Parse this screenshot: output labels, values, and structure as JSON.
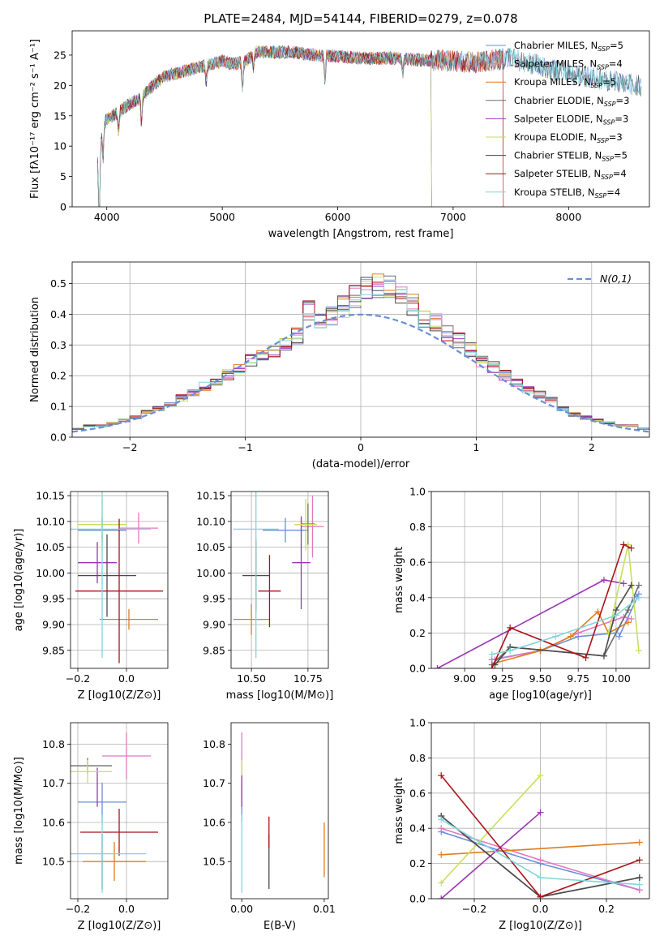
{
  "colors": {
    "Chabrier MILES": "#6a8fd8",
    "Salpeter MILES": "#e377c2",
    "Kroupa MILES": "#e07b20",
    "Chabrier ELODIE": "#6e6e6e",
    "Salpeter ELODIE": "#9b35b5",
    "Kroupa ELODIE": "#c6e05a",
    "Chabrier STELIB": "#4a4a4a",
    "Salpeter STELIB": "#a8151a",
    "Kroupa STELIB": "#7fd6db",
    "normal": "#6a8fd8"
  },
  "chart_data": [
    {
      "id": "spectrum",
      "type": "line",
      "title": "PLATE=2484, MJD=54144, FIBERID=0279, z=0.078",
      "xlabel": "wavelength [Angstrom, rest frame]",
      "ylabel": "Flux [fλ10⁻¹⁷ erg cm⁻² s⁻¹ A⁻¹]",
      "xlim": [
        3700,
        8700
      ],
      "ylim": [
        0,
        29
      ],
      "xticks": [
        4000,
        5000,
        6000,
        7000,
        8000
      ],
      "yticks": [
        0,
        5,
        10,
        15,
        20,
        25
      ],
      "grid": false,
      "legend": "upper-right",
      "series": [
        {
          "name": "Chabrier MILES, N_SSP=5",
          "end": 8630
        },
        {
          "name": "Salpeter MILES, N_SSP=4",
          "end": 7430
        },
        {
          "name": "Kroupa MILES, N_SSP=5",
          "end": 7430
        },
        {
          "name": "Chabrier ELODIE, N_SSP=3",
          "end": 6810
        },
        {
          "name": "Salpeter ELODIE, N_SSP=3",
          "end": 6810
        },
        {
          "name": "Kroupa ELODIE, N_SSP=3",
          "end": 6810
        },
        {
          "name": "Chabrier STELIB, N_SSP=5",
          "end": 8630
        },
        {
          "name": "Salpeter STELIB, N_SSP=4",
          "end": 7430
        },
        {
          "name": "Kroupa STELIB, N_SSP=4",
          "end": 8630
        }
      ],
      "continuum": {
        "x": [
          3920,
          3935,
          3950,
          3970,
          4000,
          4050,
          4100,
          4200,
          4300,
          4400,
          4500,
          4700,
          4900,
          5000,
          5100,
          5200,
          5300,
          5400,
          5600,
          5800,
          6000,
          6200,
          6500,
          6700,
          7000,
          7200,
          7500,
          7700,
          8000,
          8300,
          8600
        ],
        "y": [
          8,
          3,
          11,
          13.5,
          14.5,
          15,
          15.5,
          17,
          18,
          20,
          21.5,
          22.5,
          23.5,
          24,
          23.5,
          24,
          25.5,
          25.5,
          25.5,
          25,
          24.8,
          24.5,
          24.5,
          24.2,
          24,
          23.8,
          24.5,
          23.5,
          22,
          21,
          20
        ]
      },
      "absorption": [
        {
          "x": 3934,
          "depth": 6
        },
        {
          "x": 3968,
          "depth": 5
        },
        {
          "x": 4102,
          "depth": 3
        },
        {
          "x": 4300,
          "depth": 4
        },
        {
          "x": 4861,
          "depth": 3
        },
        {
          "x": 5175,
          "depth": 4.5
        },
        {
          "x": 5270,
          "depth": 2
        },
        {
          "x": 5890,
          "depth": 4
        },
        {
          "x": 6563,
          "depth": 2.5
        }
      ]
    },
    {
      "id": "residuals",
      "type": "bar",
      "xlabel": "(data-model)/error",
      "ylabel": "Normed distribution",
      "xlim": [
        -2.5,
        2.5
      ],
      "ylim": [
        0,
        0.57
      ],
      "xticks": [
        -2,
        -1,
        0,
        1,
        2
      ],
      "yticks": [
        0.0,
        0.1,
        0.2,
        0.3,
        0.4,
        0.5
      ],
      "grid": true,
      "legend": "upper-right",
      "bin_width": 0.1,
      "normal_label": "N(0,1)",
      "bin_max": [
        0.03,
        0.04,
        0.04,
        0.05,
        0.06,
        0.07,
        0.09,
        0.1,
        0.12,
        0.14,
        0.16,
        0.18,
        0.19,
        0.22,
        0.24,
        0.27,
        0.29,
        0.31,
        0.33,
        0.36,
        0.45,
        0.41,
        0.43,
        0.46,
        0.5,
        0.52,
        0.54,
        0.53,
        0.5,
        0.47,
        0.42,
        0.41,
        0.37,
        0.34,
        0.31,
        0.27,
        0.25,
        0.22,
        0.19,
        0.17,
        0.15,
        0.13,
        0.1,
        0.08,
        0.07,
        0.06,
        0.05,
        0.04,
        0.04,
        0.03
      ],
      "bin_spread": 0.1
    },
    {
      "id": "age-Z",
      "type": "scatter",
      "xlabel": "Z [log10(Z/Z⊙)]",
      "ylabel": "age  [log10(age/yr)]",
      "xlim": [
        -0.23,
        0.17
      ],
      "ylim": [
        9.815,
        10.158
      ],
      "xticks": [
        -0.2,
        0.0
      ],
      "yticks": [
        9.85,
        9.9,
        9.95,
        10.0,
        10.05,
        10.1,
        10.15
      ],
      "grid": true,
      "points": [
        {
          "model": "Chabrier MILES",
          "x": -0.1,
          "xerr": 0.1,
          "y": 10.083,
          "yerr": 0.024
        },
        {
          "model": "Salpeter MILES",
          "x": 0.05,
          "xerr": 0.08,
          "y": 10.087,
          "yerr": 0.03
        },
        {
          "model": "Kroupa MILES",
          "x": 0.01,
          "xerr": 0.12,
          "y": 9.91,
          "yerr": 0.02
        },
        {
          "model": "Chabrier ELODIE",
          "x": -0.2,
          "xerr": 0.0,
          "y": 10.09,
          "yerr": 0.0
        },
        {
          "model": "Salpeter ELODIE",
          "x": -0.12,
          "xerr": 0.08,
          "y": 10.02,
          "yerr": 0.04
        },
        {
          "model": "Kroupa ELODIE",
          "x": -0.1,
          "xerr": 0.1,
          "y": 10.094,
          "yerr": 0.05
        },
        {
          "model": "Chabrier STELIB",
          "x": -0.08,
          "xerr": 0.12,
          "y": 9.995,
          "yerr": 0.08
        },
        {
          "model": "Salpeter STELIB",
          "x": -0.03,
          "xerr": 0.18,
          "y": 9.965,
          "yerr": 0.14
        },
        {
          "model": "Kroupa STELIB",
          "x": -0.1,
          "xerr": 0.2,
          "y": 10.085,
          "yerr": 0.25
        }
      ]
    },
    {
      "id": "age-mass",
      "type": "scatter",
      "xlabel": "mass [log10(M/M⊙)]",
      "ylabel": "",
      "xlim": [
        10.41,
        10.84
      ],
      "ylim": [
        9.815,
        10.158
      ],
      "xticks": [
        10.5,
        10.75
      ],
      "yticks": [
        9.85,
        9.9,
        9.95,
        10.0,
        10.05,
        10.1,
        10.15
      ],
      "grid": true,
      "points": [
        {
          "model": "Chabrier MILES",
          "x": 10.65,
          "xerr": 0.1,
          "y": 10.083,
          "yerr": 0.024
        },
        {
          "model": "Salpeter MILES",
          "x": 10.77,
          "xerr": 0.05,
          "y": 10.09,
          "yerr": 0.06
        },
        {
          "model": "Kroupa MILES",
          "x": 10.5,
          "xerr": 0.08,
          "y": 9.91,
          "yerr": 0.03
        },
        {
          "model": "Chabrier ELODIE",
          "x": 10.75,
          "xerr": 0.03,
          "y": 10.095,
          "yerr": 0.04
        },
        {
          "model": "Salpeter ELODIE",
          "x": 10.72,
          "xerr": 0.04,
          "y": 10.02,
          "yerr": 0.09
        },
        {
          "model": "Kroupa ELODIE",
          "x": 10.74,
          "xerr": 0.05,
          "y": 10.094,
          "yerr": 0.05
        },
        {
          "model": "Chabrier STELIB",
          "x": 10.52,
          "xerr": 0.06,
          "y": 9.995,
          "yerr": 0.07
        },
        {
          "model": "Salpeter STELIB",
          "x": 10.58,
          "xerr": 0.05,
          "y": 9.965,
          "yerr": 0.07
        },
        {
          "model": "Kroupa STELIB",
          "x": 10.52,
          "xerr": 0.1,
          "y": 10.085,
          "yerr": 0.25
        }
      ]
    },
    {
      "id": "mw-age",
      "type": "line",
      "xlabel": "age  [log10(age/yr)]",
      "ylabel": "mass weight",
      "xlim": [
        8.78,
        10.22
      ],
      "ylim": [
        0,
        1.0
      ],
      "xticks": [
        9.0,
        9.25,
        9.5,
        9.75,
        10.0
      ],
      "yticks": [
        0.0,
        0.2,
        0.4,
        0.6,
        0.8,
        1.0
      ],
      "grid": true,
      "series": [
        {
          "model": "Chabrier MILES",
          "x": [
            9.18,
            9.5,
            9.75,
            10.0,
            10.12,
            10.15,
            10.02
          ],
          "y": [
            0.05,
            0.1,
            0.18,
            0.2,
            0.4,
            0.42,
            0.18
          ]
        },
        {
          "model": "Salpeter MILES",
          "x": [
            9.2,
            9.5,
            9.75,
            9.98,
            10.05,
            10.1
          ],
          "y": [
            0.05,
            0.1,
            0.2,
            0.27,
            0.29,
            0.28
          ]
        },
        {
          "model": "Kroupa MILES",
          "x": [
            9.2,
            9.5,
            9.7,
            9.88,
            9.95,
            10.08
          ],
          "y": [
            0.03,
            0.1,
            0.18,
            0.32,
            0.2,
            0.26
          ]
        },
        {
          "model": "Chabrier ELODIE",
          "x": [
            9.18,
            9.3,
            9.92,
            10.08,
            10.15
          ],
          "y": [
            0.02,
            0.12,
            0.07,
            0.33,
            0.47
          ]
        },
        {
          "model": "Salpeter ELODIE",
          "x": [
            8.82,
            9.92,
            10.05
          ],
          "y": [
            0.0,
            0.5,
            0.48
          ]
        },
        {
          "model": "Kroupa ELODIE",
          "x": [
            9.95,
            10.08,
            10.15
          ],
          "y": [
            0.2,
            0.7,
            0.1
          ]
        },
        {
          "model": "Chabrier STELIB",
          "x": [
            9.2,
            9.3,
            9.92,
            10.0,
            10.1
          ],
          "y": [
            0.02,
            0.12,
            0.07,
            0.33,
            0.47
          ]
        },
        {
          "model": "Salpeter STELIB",
          "x": [
            9.18,
            9.3,
            9.8,
            10.05,
            10.1
          ],
          "y": [
            0.0,
            0.23,
            0.06,
            0.7,
            0.68
          ]
        },
        {
          "model": "Kroupa STELIB",
          "x": [
            9.18,
            9.3,
            9.6,
            10.0,
            10.15
          ],
          "y": [
            0.08,
            0.1,
            0.18,
            0.3,
            0.4
          ]
        }
      ]
    },
    {
      "id": "mass-Z",
      "type": "scatter",
      "xlabel": "Z [log10(Z/Z⊙)]",
      "ylabel": "mass [log10(M/M⊙)]",
      "xlim": [
        -0.23,
        0.17
      ],
      "ylim": [
        10.405,
        10.855
      ],
      "xticks": [
        -0.2,
        0.0
      ],
      "yticks": [
        10.5,
        10.6,
        10.7,
        10.8
      ],
      "grid": true,
      "points": [
        {
          "model": "Chabrier MILES",
          "x": -0.1,
          "xerr": 0.1,
          "y": 10.652,
          "yerr": 0.05
        },
        {
          "model": "Salpeter MILES",
          "x": 0.0,
          "xerr": 0.1,
          "y": 10.77,
          "yerr": 0.06
        },
        {
          "model": "Kroupa MILES",
          "x": -0.05,
          "xerr": 0.13,
          "y": 10.5,
          "yerr": 0.05
        },
        {
          "model": "Chabrier ELODIE",
          "x": -0.16,
          "xerr": 0.1,
          "y": 10.745,
          "yerr": 0.02
        },
        {
          "model": "Salpeter ELODIE",
          "x": -0.12,
          "xerr": 0.0,
          "y": 10.69,
          "yerr": 0.05
        },
        {
          "model": "Kroupa ELODIE",
          "x": -0.16,
          "xerr": 0.1,
          "y": 10.73,
          "yerr": 0.03
        },
        {
          "model": "Chabrier STELIB",
          "x": -0.1,
          "xerr": 0.0,
          "y": 10.5,
          "yerr": 0.07
        },
        {
          "model": "Salpeter STELIB",
          "x": -0.03,
          "xerr": 0.16,
          "y": 10.575,
          "yerr": 0.06
        },
        {
          "model": "Kroupa STELIB",
          "x": -0.1,
          "xerr": 0.18,
          "y": 10.52,
          "yerr": 0.1
        }
      ]
    },
    {
      "id": "mass-ebv",
      "type": "scatter",
      "xlabel": "E(B-V)",
      "ylabel": "",
      "xlim": [
        -0.0013,
        0.0105
      ],
      "ylim": [
        10.405,
        10.855
      ],
      "xticks": [
        0.0,
        0.01
      ],
      "yticks": [
        10.5,
        10.6,
        10.7,
        10.8
      ],
      "grid": false,
      "points": [
        {
          "model": "Chabrier MILES",
          "x": 0.0,
          "xerr": 0.0,
          "y": 10.652,
          "yerr": 0.05
        },
        {
          "model": "Salpeter MILES",
          "x": 0.0,
          "xerr": 0.0,
          "y": 10.77,
          "yerr": 0.06
        },
        {
          "model": "Kroupa MILES",
          "x": 0.01,
          "xerr": 0.0,
          "y": 10.53,
          "yerr": 0.07
        },
        {
          "model": "Kroupa ELODIE",
          "x": 0.0,
          "xerr": 0.0,
          "y": 10.73,
          "yerr": 0.03
        },
        {
          "model": "Salpeter ELODIE",
          "x": 0.0,
          "xerr": 0.0,
          "y": 10.68,
          "yerr": 0.04
        },
        {
          "model": "Chabrier STELIB",
          "x": 0.0033,
          "xerr": 0.0,
          "y": 10.5,
          "yerr": 0.07
        },
        {
          "model": "Salpeter STELIB",
          "x": 0.0033,
          "xerr": 0.0,
          "y": 10.575,
          "yerr": 0.04
        },
        {
          "model": "Kroupa STELIB",
          "x": 0.0,
          "xerr": 0.0,
          "y": 10.52,
          "yerr": 0.1
        }
      ]
    },
    {
      "id": "mw-Z",
      "type": "line",
      "xlabel": "Z [log10(Z/Z⊙)]",
      "ylabel": "mass weight",
      "xlim": [
        -0.33,
        0.33
      ],
      "ylim": [
        0,
        1.0
      ],
      "xticks": [
        -0.2,
        0.0,
        0.2
      ],
      "yticks": [
        0.0,
        0.2,
        0.4,
        0.6,
        0.8,
        1.0
      ],
      "grid": true,
      "series": [
        {
          "model": "Chabrier MILES",
          "x": [
            -0.3,
            0.0,
            0.3
          ],
          "y": [
            0.38,
            0.2,
            0.05
          ]
        },
        {
          "model": "Salpeter MILES",
          "x": [
            -0.3,
            0.0,
            0.3
          ],
          "y": [
            0.4,
            0.22,
            0.05
          ]
        },
        {
          "model": "Kroupa MILES",
          "x": [
            -0.3,
            0.3
          ],
          "y": [
            0.25,
            0.32
          ]
        },
        {
          "model": "Chabrier ELODIE",
          "x": [
            -0.3,
            0.0,
            0.3
          ],
          "y": [
            0.47,
            0.01,
            0.12
          ]
        },
        {
          "model": "Salpeter ELODIE",
          "x": [
            -0.3,
            0.0
          ],
          "y": [
            0.0,
            0.49
          ]
        },
        {
          "model": "Kroupa ELODIE",
          "x": [
            -0.3,
            0.0
          ],
          "y": [
            0.09,
            0.7
          ]
        },
        {
          "model": "Chabrier STELIB",
          "x": [
            -0.3,
            0.0,
            0.3
          ],
          "y": [
            0.47,
            0.01,
            0.12
          ]
        },
        {
          "model": "Salpeter STELIB",
          "x": [
            -0.3,
            0.0,
            0.3
          ],
          "y": [
            0.7,
            0.01,
            0.22
          ]
        },
        {
          "model": "Kroupa STELIB",
          "x": [
            -0.3,
            0.0,
            0.3
          ],
          "y": [
            0.45,
            0.12,
            0.08
          ]
        }
      ]
    }
  ]
}
